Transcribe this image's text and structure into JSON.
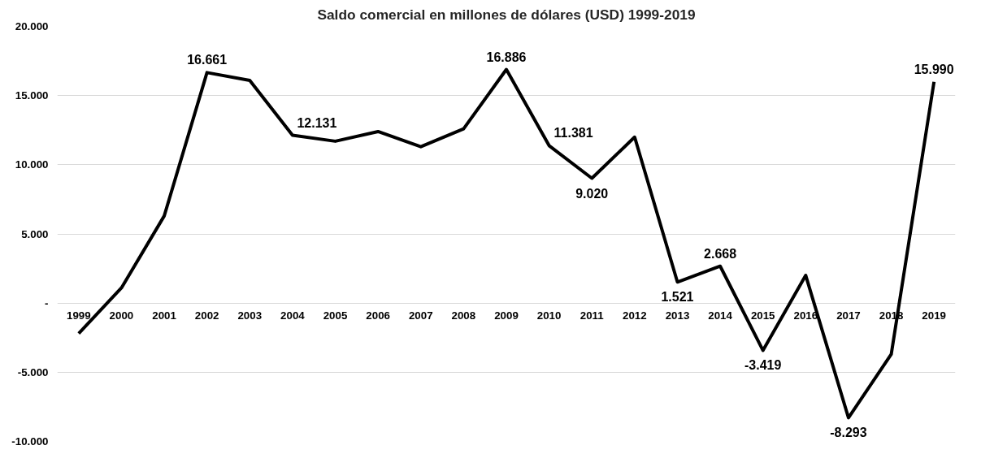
{
  "chart_data": {
    "type": "line",
    "title": "Saldo comercial en millones de dólares (USD) 1999-2019",
    "categories": [
      "1999",
      "2000",
      "2001",
      "2002",
      "2003",
      "2004",
      "2005",
      "2006",
      "2007",
      "2008",
      "2009",
      "2010",
      "2011",
      "2012",
      "2013",
      "2014",
      "2015",
      "2016",
      "2017",
      "2018",
      "2019"
    ],
    "series": [
      {
        "color": "#000000",
        "values": [
          -2200,
          1100,
          6300,
          16661,
          16100,
          12131,
          11700,
          12400,
          11300,
          12600,
          16886,
          11381,
          9020,
          12000,
          1521,
          2668,
          -3419,
          2000,
          -8293,
          -3700,
          15990
        ],
        "value_labels": [
          null,
          null,
          null,
          "16.661",
          null,
          "12.131",
          null,
          null,
          null,
          null,
          "16.886",
          "11.381",
          "9.020",
          null,
          "1.521",
          "2.668",
          "-3.419",
          null,
          "-8.293",
          null,
          "15.990"
        ]
      }
    ],
    "ylim": [
      -10000,
      20000
    ],
    "yticks": [
      {
        "value": -10000,
        "label": "-10.000"
      },
      {
        "value": -5000,
        "label": "-5.000"
      },
      {
        "value": 0,
        "label": "-"
      },
      {
        "value": 5000,
        "label": "5.000"
      },
      {
        "value": 10000,
        "label": "10.000"
      },
      {
        "value": 15000,
        "label": "15.000"
      },
      {
        "value": 20000,
        "label": "20.000"
      }
    ],
    "grid": "y",
    "marker": "none",
    "line_style": "solid"
  }
}
